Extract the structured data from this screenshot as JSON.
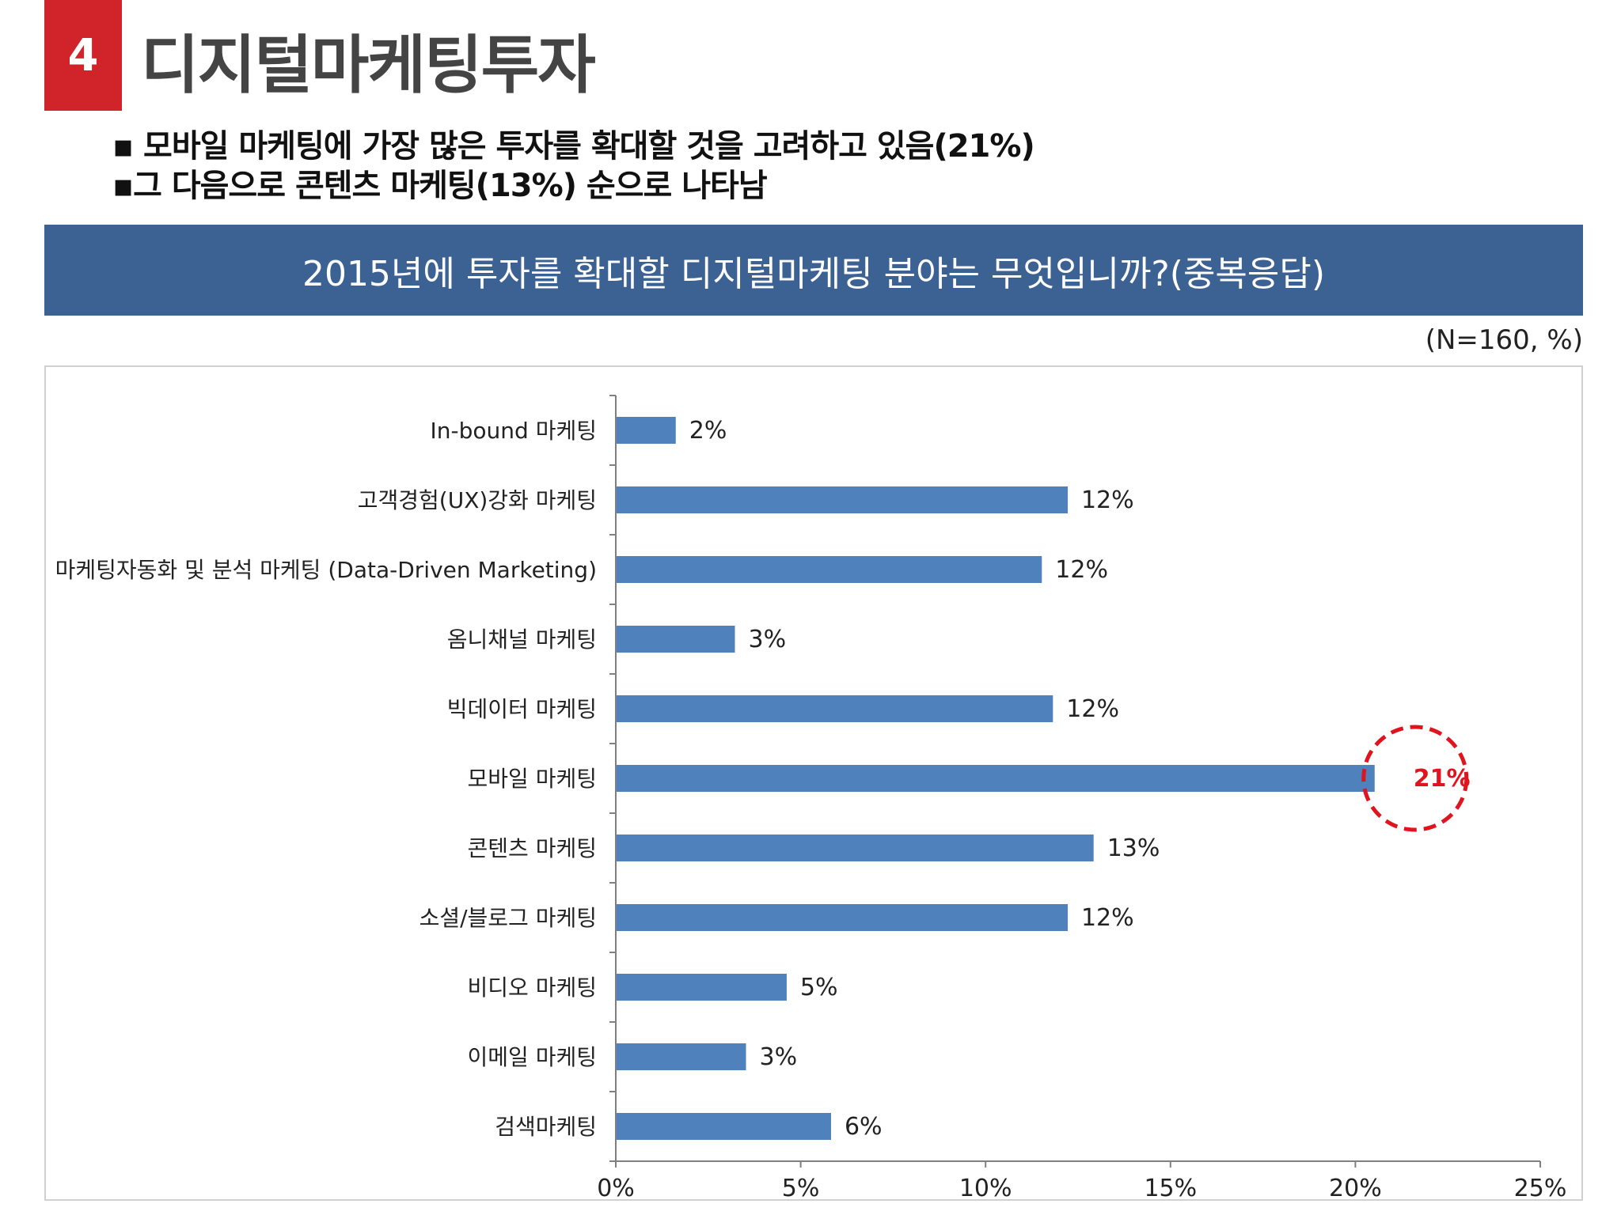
{
  "header": {
    "section_number": "4",
    "title": "디지털마케팅투자"
  },
  "bullets": [
    "▪ 모바일 마케팅에 가장 많은 투자를 확대할 것을 고려하고 있음(21%)",
    "▪그 다음으로 콘텐츠 마케팅(13%) 순으로 나타남"
  ],
  "banner": {
    "question": "2015년에 투자를 확대할 디지털마케팅 분야는 무엇입니까?(중복응답)"
  },
  "sample_note": "(N=160, %)",
  "colors": {
    "bar": "#4f81bd",
    "highlight": "#e0141e",
    "banner": "#3c6293",
    "badge": "#d0232a"
  },
  "chart_data": {
    "type": "bar",
    "orientation": "horizontal",
    "categories": [
      "In-bound 마케팅",
      "고객경험(UX)강화 마케팅",
      "마케팅자동화 및 분석 마케팅 (Data-Driven Marketing)",
      "옴니채널 마케팅",
      "빅데이터 마케팅",
      "모바일 마케팅",
      "콘텐츠 마케팅",
      "소셜/블로그 마케팅",
      "비디오 마케팅",
      "이메일 마케팅",
      "검색마케팅"
    ],
    "values": [
      1.6,
      12.2,
      11.5,
      3.2,
      11.8,
      20.5,
      12.9,
      12.2,
      4.6,
      3.5,
      5.8
    ],
    "value_labels": [
      "2%",
      "12%",
      "12%",
      "3%",
      "12%",
      "21%",
      "13%",
      "12%",
      "5%",
      "3%",
      "6%"
    ],
    "highlight_index": 5,
    "xlim": [
      0,
      25
    ],
    "xticks": [
      0,
      5,
      10,
      15,
      20,
      25
    ],
    "xtick_labels": [
      "0%",
      "5%",
      "10%",
      "15%",
      "20%",
      "25%"
    ],
    "xlabel": "",
    "ylabel": "",
    "grid": false,
    "legend": "none"
  }
}
